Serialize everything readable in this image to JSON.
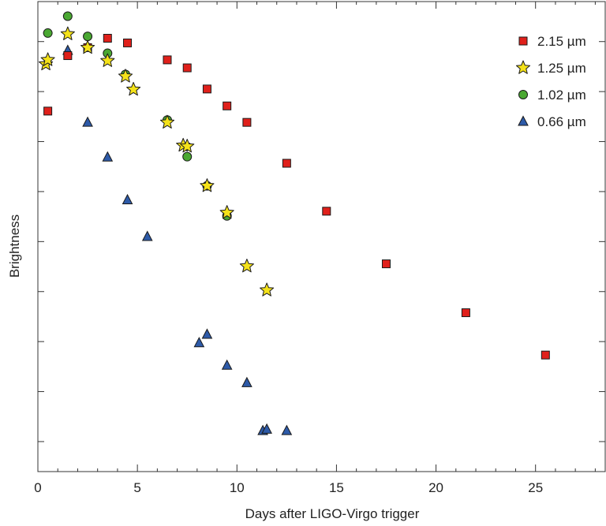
{
  "chart_data": {
    "type": "scatter",
    "title": "",
    "xlabel": "Days after LIGO-Virgo trigger",
    "ylabel": "Brightness",
    "xlim": [
      0,
      28.5
    ],
    "ylim": [
      0,
      100
    ],
    "xticks": [
      0,
      5,
      10,
      15,
      20,
      25
    ],
    "xtick_labels": [
      "0",
      "5",
      "10",
      "15",
      "20",
      "25"
    ],
    "yticks_count": 10,
    "show_ytick_labels": false,
    "grid": false,
    "legend_position": "top-right",
    "series": [
      {
        "name": "2.15 µm",
        "marker": "square",
        "color": "#e0201b",
        "points": [
          [
            0.5,
            76.7
          ],
          [
            1.5,
            88.5
          ],
          [
            2.5,
            90.2
          ],
          [
            3.5,
            92.2
          ],
          [
            4.5,
            91.2
          ],
          [
            6.5,
            87.6
          ],
          [
            7.5,
            85.9
          ],
          [
            8.5,
            81.4
          ],
          [
            9.5,
            77.8
          ],
          [
            10.5,
            74.3
          ],
          [
            12.5,
            65.6
          ],
          [
            14.5,
            55.4
          ],
          [
            17.5,
            44.2
          ],
          [
            21.5,
            33.8
          ],
          [
            25.5,
            24.8
          ]
        ]
      },
      {
        "name": "1.25 µm",
        "marker": "star",
        "color": "#f4e21a",
        "points": [
          [
            0.4,
            86.7
          ],
          [
            0.5,
            87.6
          ],
          [
            1.5,
            93.1
          ],
          [
            2.5,
            90.2
          ],
          [
            3.5,
            87.4
          ],
          [
            4.4,
            84.1
          ],
          [
            4.8,
            81.3
          ],
          [
            6.5,
            74.3
          ],
          [
            7.3,
            69.4
          ],
          [
            7.5,
            69.2
          ],
          [
            8.5,
            60.8
          ],
          [
            9.5,
            55.1
          ],
          [
            10.5,
            43.7
          ],
          [
            11.5,
            38.6
          ]
        ]
      },
      {
        "name": "1.02 µm",
        "marker": "circle",
        "color": "#4aa832",
        "points": [
          [
            0.5,
            93.3
          ],
          [
            1.5,
            96.9
          ],
          [
            2.5,
            92.6
          ],
          [
            3.5,
            89.0
          ],
          [
            4.4,
            84.5
          ],
          [
            6.5,
            74.8
          ],
          [
            7.5,
            67.0
          ],
          [
            8.5,
            60.8
          ],
          [
            9.5,
            54.4
          ]
        ]
      },
      {
        "name": "0.66 µm",
        "marker": "triangle",
        "color": "#2d5aa8",
        "points": [
          [
            1.5,
            89.6
          ],
          [
            2.5,
            74.3
          ],
          [
            3.5,
            66.9
          ],
          [
            4.5,
            57.8
          ],
          [
            5.5,
            50.0
          ],
          [
            8.1,
            27.4
          ],
          [
            8.5,
            29.2
          ],
          [
            9.5,
            22.6
          ],
          [
            10.5,
            18.9
          ],
          [
            11.3,
            8.7
          ],
          [
            11.5,
            9.0
          ],
          [
            12.5,
            8.7
          ]
        ]
      }
    ]
  }
}
